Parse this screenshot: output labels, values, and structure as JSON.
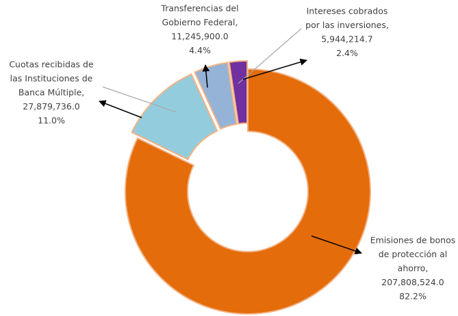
{
  "chart_data": {
    "type": "donut",
    "categories": [
      [
        "Emisiones de bonos",
        "de protección al",
        "ahorro,"
      ],
      [
        "Cuotas recibidas de",
        "las Instituciones de",
        "Banca Múltiple,"
      ],
      [
        "Transferencias del",
        "Gobierno Federal,"
      ],
      [
        "Intereses cobrados",
        "por las inversiones,"
      ]
    ],
    "values": [
      207808524.0,
      27879736.0,
      11245900.0,
      5944214.7
    ],
    "value_labels": [
      "207,808,524.0",
      "27,879,736.0",
      "11,245,900.0",
      "5,944,214.7"
    ],
    "percent": [
      82.2,
      11.0,
      4.4,
      2.4
    ],
    "percent_labels": [
      "82.2%",
      "11.0%",
      "4.4%",
      "2.4%"
    ],
    "colors": [
      "#e46c0a",
      "#93cddd",
      "#95b3d7",
      "#7030a0"
    ]
  }
}
